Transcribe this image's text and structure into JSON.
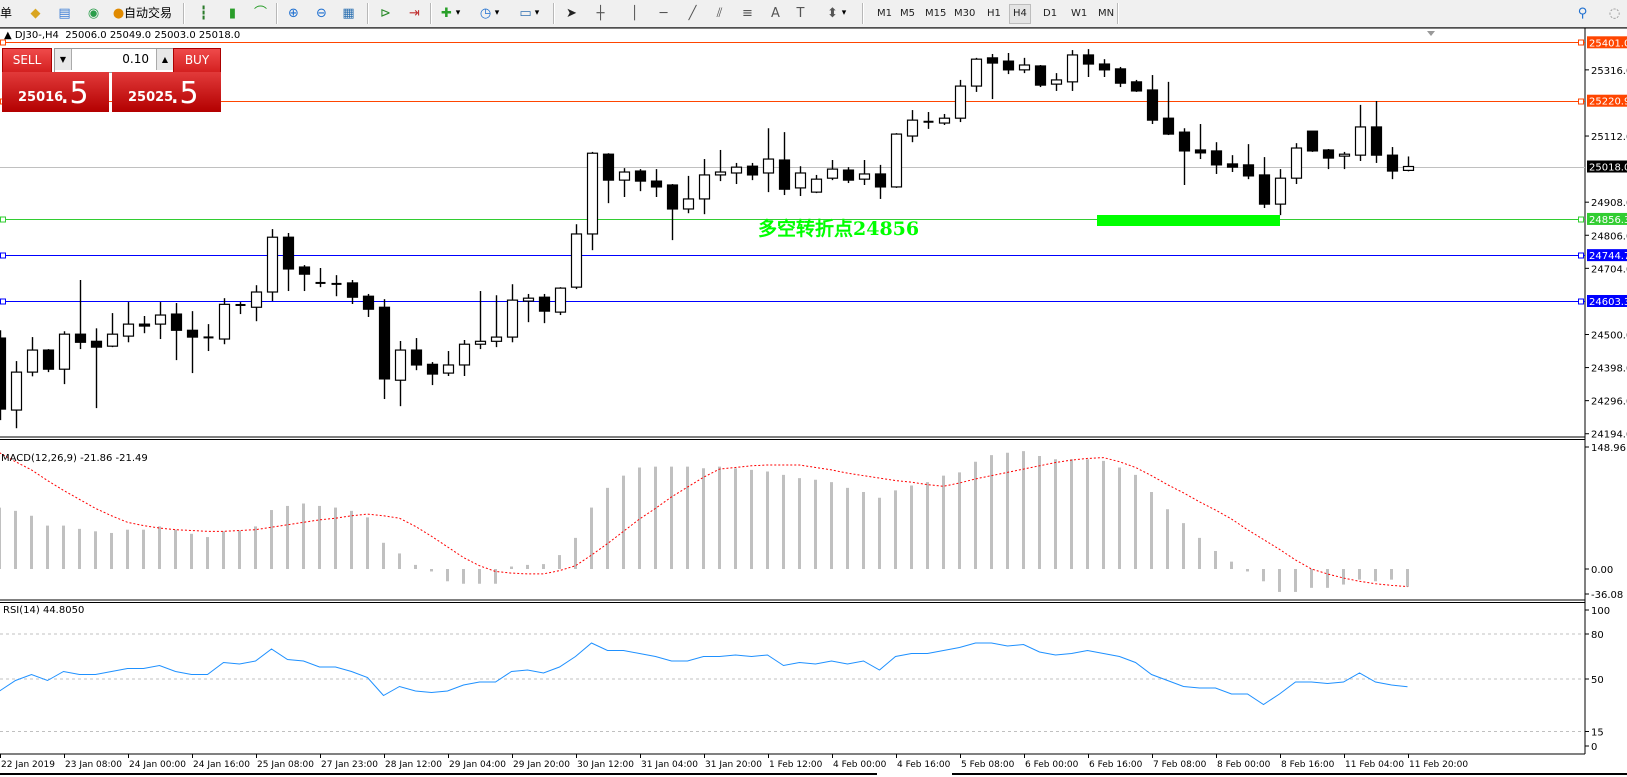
{
  "toolbar": {
    "menu_fragment": "单",
    "autotrade_label": "自动交易",
    "icons_left": [
      "market-watch-icon",
      "navigator-icon",
      "terminal-signals-icon",
      "autotrade-icon"
    ],
    "icons_chart": [
      "bar-chart-icon",
      "candlestick-icon",
      "line-chart-icon",
      "zoom-in-icon",
      "zoom-out-icon",
      "tile-windows-icon",
      "chart-shift-icon",
      "autoscroll-icon",
      "indicators-icon",
      "periods-icon",
      "templates-icon"
    ],
    "icons_draw": [
      "cursor-icon",
      "crosshair-icon",
      "vertical-line-icon",
      "horizontal-line-icon",
      "trendline-icon",
      "equidistant-channel-icon",
      "fibonacci-icon",
      "text-icon",
      "text-label-icon",
      "arrows-icon"
    ],
    "timeframes": [
      "M1",
      "M5",
      "M15",
      "M30",
      "H1",
      "H4",
      "D1",
      "W1",
      "MN"
    ],
    "active_timeframe": "H4",
    "icons_right": [
      "search-icon",
      "chat-icon"
    ]
  },
  "chart": {
    "symbol_header": "DJ30-,H4",
    "ohlc_header": "25006.0 25049.0 25003.0 25018.0"
  },
  "trade_panel": {
    "sell_label": "SELL",
    "buy_label": "BUY",
    "lot": "0.10",
    "sell_price_main": "25016",
    "sell_price_frac": ".5",
    "buy_price_main": "25025",
    "buy_price_frac": ".5"
  },
  "annotation": {
    "text": "多空转折点24856",
    "color": "#00ff00",
    "zone_color": "#00ff00"
  },
  "colors": {
    "bull_body": "#ffffff",
    "bear_body": "#000000",
    "macd_hist": "#c0c0c0",
    "macd_signal": "#ff0000",
    "rsi_line": "#1e90ff",
    "level_line": "#c0c0c0"
  },
  "chart_data": [
    {
      "type": "candlestick",
      "symbol": "DJ30-",
      "timeframe": "H4",
      "y_ticks": [
        "25316.0",
        "25112.0",
        "24908.0",
        "24806.0",
        "24704.0",
        "24500.0",
        "24398.0",
        "24296.0",
        "24194.0"
      ],
      "x_tick_labels": [
        "22 Jan 2019",
        "23 Jan 08:00",
        "24 Jan 00:00",
        "24 Jan 16:00",
        "25 Jan 08:00",
        "27 Jan 23:00",
        "28 Jan 12:00",
        "29 Jan 04:00",
        "29 Jan 20:00",
        "30 Jan 12:00",
        "31 Jan 04:00",
        "31 Jan 20:00",
        "1 Feb 12:00",
        "4 Feb 00:00",
        "4 Feb 16:00",
        "5 Feb 08:00",
        "6 Feb 00:00",
        "6 Feb 16:00",
        "7 Feb 08:00",
        "8 Feb 00:00",
        "8 Feb 16:00",
        "11 Feb 04:00",
        "11 Feb 20:00"
      ],
      "ohlc": [
        [
          24489,
          24513,
          24236,
          24270
        ],
        [
          24267,
          24418,
          24211,
          24384
        ],
        [
          24384,
          24492,
          24371,
          24452
        ],
        [
          24452,
          24455,
          24384,
          24393
        ],
        [
          24393,
          24510,
          24347,
          24501
        ],
        [
          24501,
          24668,
          24455,
          24476
        ],
        [
          24479,
          24519,
          24273,
          24461
        ],
        [
          24464,
          24566,
          24461,
          24501
        ],
        [
          24495,
          24600,
          24476,
          24532
        ],
        [
          24532,
          24557,
          24504,
          24526
        ],
        [
          24532,
          24600,
          24486,
          24560
        ],
        [
          24563,
          24597,
          24421,
          24513
        ],
        [
          24513,
          24572,
          24381,
          24492
        ],
        [
          24491,
          24532,
          24449,
          24490
        ],
        [
          24486,
          24612,
          24470,
          24593
        ],
        [
          24590,
          24600,
          24563,
          24591
        ],
        [
          24584,
          24652,
          24541,
          24631
        ],
        [
          24631,
          24825,
          24603,
          24800
        ],
        [
          24800,
          24813,
          24634,
          24702
        ],
        [
          24708,
          24714,
          24634,
          24686
        ],
        [
          24659,
          24705,
          24646,
          24658
        ],
        [
          24655,
          24683,
          24618,
          24656
        ],
        [
          24659,
          24668,
          24594,
          24615
        ],
        [
          24618,
          24625,
          24554,
          24578
        ],
        [
          24584,
          24609,
          24301,
          24363
        ],
        [
          24359,
          24480,
          24279,
          24452
        ],
        [
          24452,
          24489,
          24390,
          24406
        ],
        [
          24408,
          24415,
          24344,
          24378
        ],
        [
          24381,
          24449,
          24372,
          24406
        ],
        [
          24406,
          24483,
          24372,
          24470
        ],
        [
          24470,
          24634,
          24455,
          24479
        ],
        [
          24479,
          24621,
          24461,
          24492
        ],
        [
          24492,
          24655,
          24476,
          24606
        ],
        [
          24603,
          24625,
          24538,
          24612
        ],
        [
          24615,
          24625,
          24535,
          24572
        ],
        [
          24569,
          24646,
          24560,
          24643
        ],
        [
          24646,
          24840,
          24640,
          24810
        ],
        [
          24810,
          25063,
          24760,
          25059
        ],
        [
          25056,
          25059,
          24905,
          24976
        ],
        [
          24976,
          25013,
          24924,
          25001
        ],
        [
          25004,
          25010,
          24942,
          24973
        ],
        [
          24973,
          25010,
          24924,
          24955
        ],
        [
          24961,
          24964,
          24791,
          24887
        ],
        [
          24887,
          24989,
          24874,
          24918
        ],
        [
          24918,
          25041,
          24871,
          24992
        ],
        [
          24992,
          25069,
          24973,
          25001
        ],
        [
          24998,
          25029,
          24964,
          25016
        ],
        [
          25019,
          25029,
          24976,
          24992
        ],
        [
          24998,
          25136,
          24939,
          25041
        ],
        [
          25038,
          25124,
          24930,
          24948
        ],
        [
          24952,
          25019,
          24927,
          24998
        ],
        [
          24939,
          24992,
          24936,
          24979
        ],
        [
          24982,
          25038,
          24976,
          25010
        ],
        [
          25007,
          25016,
          24967,
          24976
        ],
        [
          24979,
          25038,
          24961,
          24995
        ],
        [
          24995,
          25023,
          24918,
          24955
        ],
        [
          24955,
          25121,
          24952,
          25118
        ],
        [
          25112,
          25192,
          25093,
          25161
        ],
        [
          25155,
          25186,
          25134,
          25156
        ],
        [
          25152,
          25180,
          25146,
          25167
        ],
        [
          25167,
          25285,
          25155,
          25266
        ],
        [
          25266,
          25353,
          25248,
          25349
        ],
        [
          25353,
          25365,
          25226,
          25337
        ],
        [
          25343,
          25368,
          25303,
          25316
        ],
        [
          25316,
          25353,
          25306,
          25331
        ],
        [
          25328,
          25331,
          25263,
          25269
        ],
        [
          25272,
          25306,
          25251,
          25285
        ],
        [
          25279,
          25377,
          25251,
          25362
        ],
        [
          25362,
          25380,
          25294,
          25334
        ],
        [
          25334,
          25349,
          25294,
          25316
        ],
        [
          25319,
          25325,
          25263,
          25275
        ],
        [
          25279,
          25285,
          25248,
          25251
        ],
        [
          25254,
          25300,
          25149,
          25161
        ],
        [
          25167,
          25279,
          25115,
          25118
        ],
        [
          25124,
          25136,
          24961,
          25066
        ],
        [
          25069,
          25149,
          25041,
          25060
        ],
        [
          25066,
          25093,
          24995,
          25023
        ],
        [
          25026,
          25053,
          25001,
          25016
        ],
        [
          25023,
          25087,
          24979,
          24989
        ],
        [
          24992,
          25047,
          24890,
          24902
        ],
        [
          24902,
          25010,
          24868,
          24982
        ],
        [
          24982,
          25090,
          24964,
          25075
        ],
        [
          25127,
          25127,
          25063,
          25066
        ],
        [
          25069,
          25072,
          25010,
          25044
        ],
        [
          25050,
          25063,
          25010,
          25056
        ],
        [
          25053,
          25208,
          25035,
          25140
        ],
        [
          25140,
          25220,
          25029,
          25053
        ],
        [
          25053,
          25078,
          24979,
          25004
        ],
        [
          25006,
          25049,
          25003,
          25018
        ]
      ],
      "horizontal_lines": [
        {
          "price": 25401.0,
          "label": "25401.0",
          "color": "#ff4500",
          "label_bg": "#ff4500"
        },
        {
          "price": 25220.9,
          "label": "25220.9",
          "color": "#ff4500",
          "label_bg": "#ff4500"
        },
        {
          "price": 25018.0,
          "label": "25018.0",
          "color": "#c0c0c0",
          "label_bg": "#000000"
        },
        {
          "price": 24856.3,
          "label": "24856.3",
          "color": "#32cd32",
          "label_bg": "#32cd32"
        },
        {
          "price": 24744.7,
          "label": "24744.7",
          "color": "#0000ff",
          "label_bg": "#0000ff"
        },
        {
          "price": 24603.3,
          "label": "24603.3",
          "color": "#0000ff",
          "label_bg": "#0000ff"
        }
      ]
    },
    {
      "type": "bar",
      "title": "MACD(12,26,9) -21.86 -21.49",
      "y_ticks": [
        "148.96",
        "0.00",
        "-36.08"
      ],
      "histogram": [
        75,
        71,
        65,
        53,
        53,
        49,
        46,
        44,
        48,
        48,
        52,
        48,
        43,
        39,
        46,
        47,
        52,
        72,
        77,
        80,
        77,
        75,
        71,
        63,
        32,
        19,
        5,
        -3,
        -15,
        -18,
        -18,
        -18,
        3,
        5,
        6,
        17,
        38,
        75,
        99,
        114,
        124,
        125,
        125,
        125,
        123,
        125,
        123,
        121,
        119,
        115,
        111,
        109,
        106,
        99,
        94,
        87,
        96,
        102,
        106,
        114,
        118,
        131,
        139,
        142,
        144,
        138,
        134,
        134,
        134,
        132,
        124,
        115,
        94,
        73,
        56,
        38,
        22,
        9,
        -3,
        -15,
        -28,
        -28,
        -23,
        -23,
        -19,
        -13,
        -15,
        -13,
        -21.86
      ],
      "signal": [
        142,
        131,
        121,
        108,
        96,
        85,
        74,
        65,
        57,
        53,
        50,
        48,
        47,
        46,
        46,
        47,
        48,
        51,
        54,
        57,
        60,
        62,
        65,
        67,
        65,
        62,
        52,
        40,
        27,
        14,
        4,
        -3,
        -5,
        -6,
        -6,
        -2,
        4,
        17,
        31,
        46,
        61,
        74,
        88,
        100,
        112,
        122,
        124,
        126,
        127,
        127,
        127,
        124,
        121,
        117,
        114,
        111,
        108,
        106,
        103,
        101,
        105,
        110,
        114,
        118,
        122,
        126,
        130,
        133,
        135,
        136,
        131,
        124,
        114,
        103,
        93,
        82,
        72,
        61,
        48,
        36,
        24,
        11,
        0,
        -6,
        -11,
        -15,
        -18,
        -20,
        -21.49
      ]
    },
    {
      "type": "line",
      "title": "RSI(14) 44.8050",
      "y_ticks": [
        "100",
        "80",
        "50",
        "15",
        "0"
      ],
      "levels": [
        80,
        50,
        15
      ],
      "ylim": [
        0,
        100
      ],
      "values": [
        42,
        49,
        53,
        49,
        55,
        53,
        53,
        55,
        57,
        57,
        59,
        55,
        53,
        53,
        61,
        60,
        62,
        70,
        63,
        62,
        58,
        58,
        55,
        51,
        39,
        45,
        42,
        41,
        42,
        46,
        48,
        48,
        55,
        56,
        54,
        58,
        65,
        74,
        69,
        69,
        67,
        65,
        62,
        62,
        65,
        65,
        66,
        65,
        66,
        59,
        61,
        60,
        62,
        60,
        62,
        56,
        65,
        67,
        67,
        69,
        71,
        74,
        74,
        72,
        73,
        68,
        66,
        67,
        69,
        67,
        65,
        61,
        53,
        49,
        45,
        44,
        44,
        40,
        40,
        33,
        40,
        48,
        48,
        47,
        48,
        54,
        48,
        46,
        44.805
      ]
    }
  ]
}
